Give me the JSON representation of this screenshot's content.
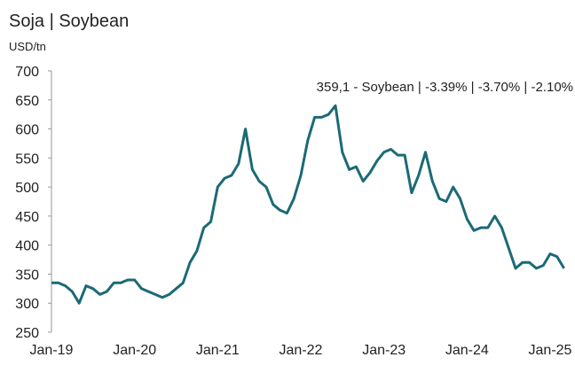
{
  "chart_data": {
    "type": "line",
    "title": "Soja | Soybean",
    "y_label": "USD/tn",
    "annotation": "359,1 - Soybean | -3.39% | -3.70% | -2.10%",
    "categories": [
      "Jan-19",
      null,
      null,
      null,
      null,
      null,
      null,
      null,
      null,
      null,
      null,
      null,
      "Jan-20",
      null,
      null,
      null,
      null,
      null,
      null,
      null,
      null,
      null,
      null,
      null,
      "Jan-21",
      null,
      null,
      null,
      null,
      null,
      null,
      null,
      null,
      null,
      null,
      null,
      "Jan-22",
      null,
      null,
      null,
      null,
      null,
      null,
      null,
      null,
      null,
      null,
      null,
      "Jan-23",
      null,
      null,
      null,
      null,
      null,
      null,
      null,
      null,
      null,
      null,
      null,
      "Jan-24",
      null,
      null,
      null,
      null,
      null,
      null,
      null,
      null,
      null,
      null,
      null,
      "Jan-25",
      null,
      null
    ],
    "series": [
      {
        "name": "Soybean",
        "color": "#1b6a76",
        "values": [
          335,
          335,
          330,
          320,
          300,
          330,
          325,
          315,
          320,
          335,
          335,
          340,
          340,
          325,
          320,
          315,
          310,
          315,
          325,
          335,
          370,
          390,
          430,
          440,
          500,
          515,
          520,
          540,
          600,
          530,
          510,
          500,
          470,
          460,
          455,
          480,
          520,
          580,
          620,
          620,
          625,
          640,
          560,
          530,
          535,
          510,
          525,
          545,
          560,
          565,
          555,
          555,
          490,
          520,
          560,
          510,
          480,
          475,
          500,
          480,
          445,
          425,
          430,
          430,
          450,
          430,
          395,
          360,
          370,
          370,
          360,
          365,
          385,
          380,
          360
        ]
      }
    ],
    "ylim": [
      250,
      700
    ],
    "yticks": [
      250,
      300,
      350,
      400,
      450,
      500,
      550,
      600,
      650,
      700
    ]
  }
}
